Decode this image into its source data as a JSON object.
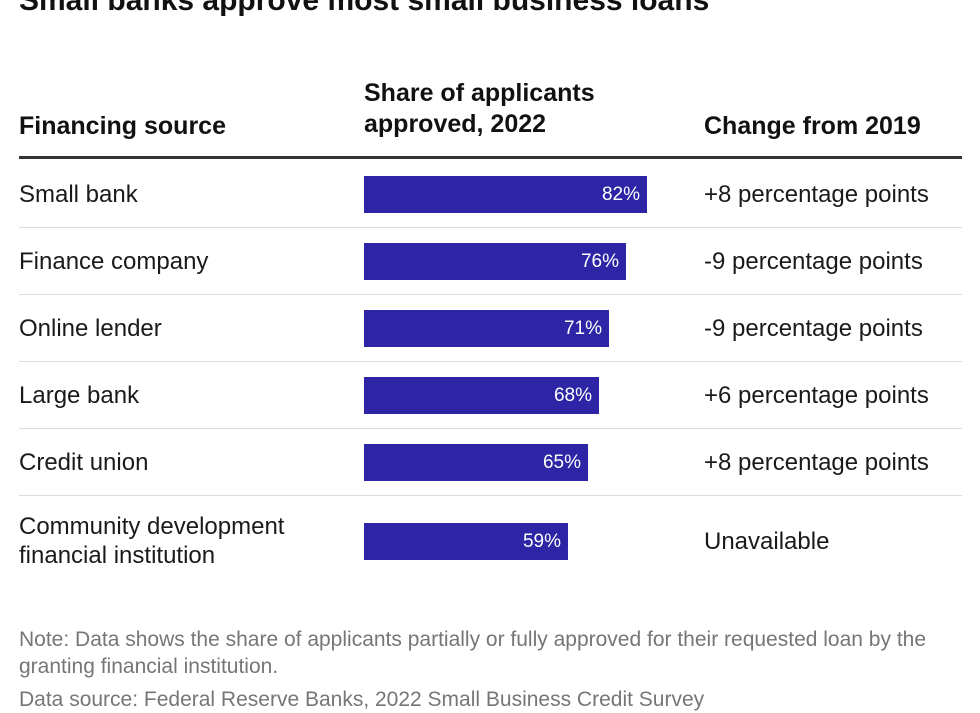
{
  "title": "Small banks approve most small business loans",
  "headers": {
    "source": "Financing source",
    "share": "Share of applicants approved, 2022",
    "change": "Change from 2019"
  },
  "chart_data": {
    "type": "table",
    "title": "Small banks approve most small business loans",
    "columns": [
      "Financing source",
      "Share of applicants approved, 2022",
      "Change from 2019"
    ],
    "rows": [
      {
        "source": "Small bank",
        "value": 82,
        "label": "82%",
        "change": "+8 percentage points"
      },
      {
        "source": "Finance company",
        "value": 76,
        "label": "76%",
        "change": "-9 percentage points"
      },
      {
        "source": "Online lender",
        "value": 71,
        "label": "71%",
        "change": "-9 percentage points"
      },
      {
        "source": "Large bank",
        "value": 68,
        "label": "68%",
        "change": "+6 percentage points"
      },
      {
        "source": "Credit union",
        "value": 65,
        "label": "65%",
        "change": "+8 percentage points"
      },
      {
        "source": "Community development financial institution",
        "value": 59,
        "label": "59%",
        "change": "Unavailable"
      }
    ],
    "value_range": [
      0,
      100
    ],
    "bar_color": "#2d25a5"
  },
  "note": "Note: Data shows the share of applicants partially or fully approved for their requested loan by the granting financial institution.",
  "source_text": "Data source: Federal Reserve Banks, 2022 Small Business Credit Survey"
}
